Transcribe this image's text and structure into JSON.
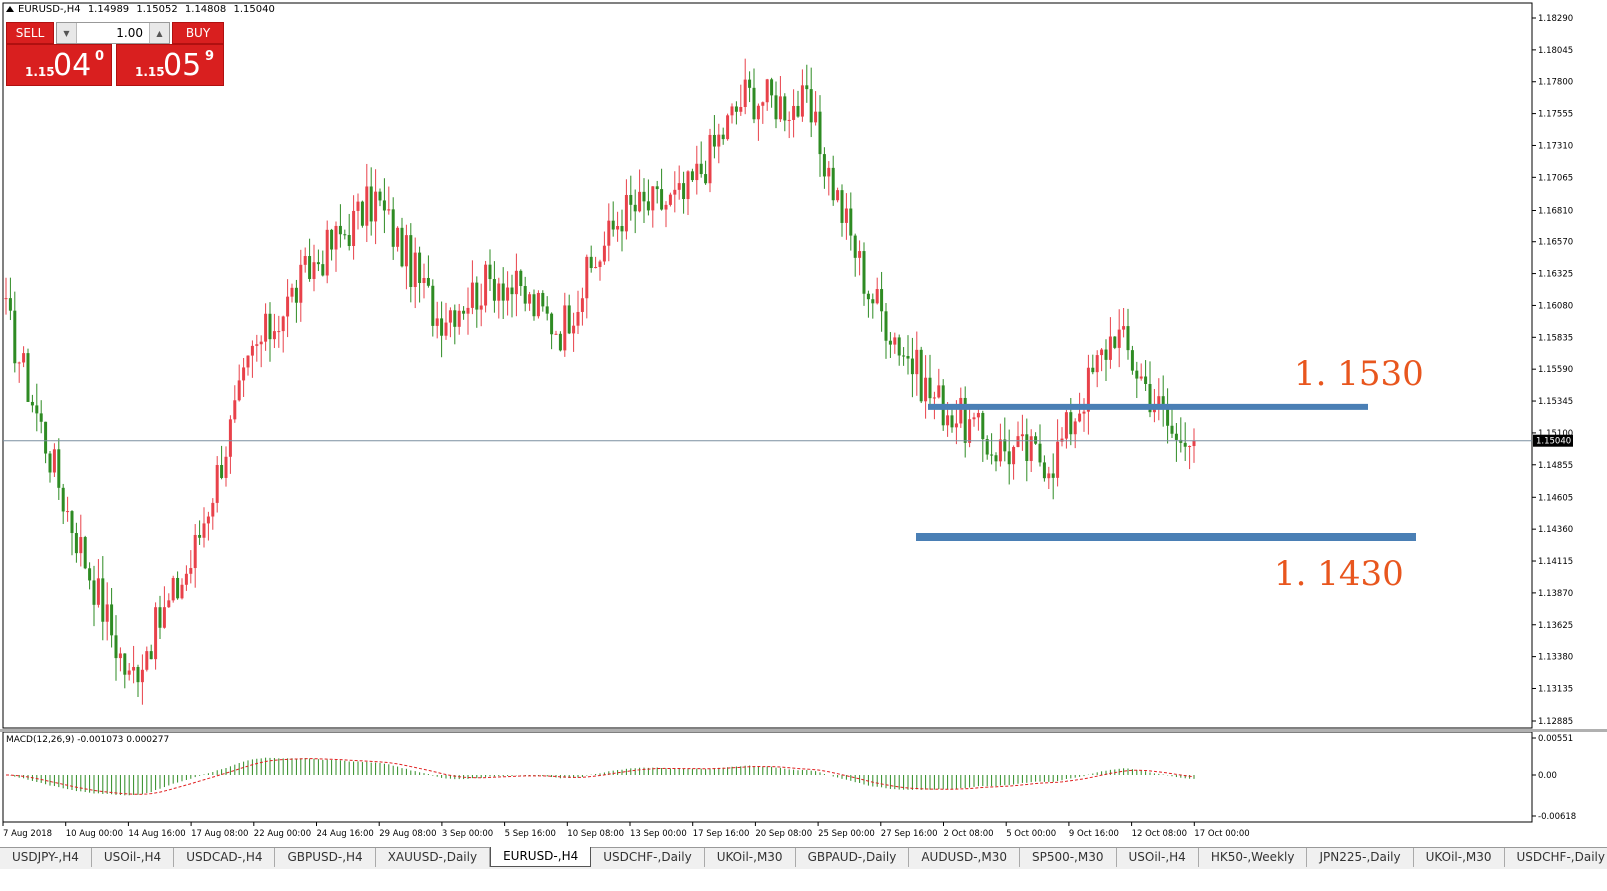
{
  "header": {
    "symbol": "EURUSD-,H4",
    "open": "1.14989",
    "high": "1.15052",
    "low": "1.14808",
    "close": "1.15040"
  },
  "trade_panel": {
    "sell_label": "SELL",
    "buy_label": "BUY",
    "lot_value": "1.00",
    "sell_price_small": "1.15",
    "sell_price_big": "04",
    "sell_price_sup": "0",
    "buy_price_small": "1.15",
    "buy_price_big": "05",
    "buy_price_sup": "9"
  },
  "price_axis": {
    "labels": [
      "1.18290",
      "1.18045",
      "1.17800",
      "1.17555",
      "1.17310",
      "1.17065",
      "1.16810",
      "1.16570",
      "1.16325",
      "1.16080",
      "1.15835",
      "1.15590",
      "1.15345",
      "1.15100",
      "1.14855",
      "1.14605",
      "1.14360",
      "1.14115",
      "1.13870",
      "1.13625",
      "1.13380",
      "1.13135",
      "1.12885"
    ],
    "current_price": "1.15040"
  },
  "macd": {
    "label": "MACD(12,26,9) -0.001073 0.000277",
    "axis_labels": [
      "0.00551",
      "0.00",
      "-0.00618"
    ]
  },
  "time_axis": {
    "labels": [
      "7 Aug 2018",
      "10 Aug 00:00",
      "14 Aug 16:00",
      "17 Aug 08:00",
      "22 Aug 00:00",
      "24 Aug 16:00",
      "29 Aug 08:00",
      "3 Sep 00:00",
      "5 Sep 16:00",
      "10 Sep 08:00",
      "13 Sep 00:00",
      "17 Sep 16:00",
      "20 Sep 08:00",
      "25 Sep 00:00",
      "27 Sep 16:00",
      "2 Oct 08:00",
      "5 Oct 00:00",
      "9 Oct 16:00",
      "12 Oct 08:00",
      "17 Oct 00:00"
    ]
  },
  "annotations": {
    "resistance_label": "1. 1530",
    "support_label": "1. 1430",
    "level_color": "#4a7fb5",
    "label_color": "#e8561e"
  },
  "colors": {
    "bull": "#e8414a",
    "bear": "#2e8b23",
    "macd_hist": "#2e8b23",
    "macd_signal": "#e02020",
    "trade_red": "#d91f1f"
  },
  "tabs": [
    {
      "label": "USDJPY-,H4"
    },
    {
      "label": "USOil-,H4"
    },
    {
      "label": "USDCAD-,H4"
    },
    {
      "label": "GBPUSD-,H4"
    },
    {
      "label": "XAUUSD-,Daily"
    },
    {
      "label": "EURUSD-,H4",
      "active": true
    },
    {
      "label": "USDCHF-,Daily"
    },
    {
      "label": "UKOil-,M30"
    },
    {
      "label": "GBPAUD-,Daily"
    },
    {
      "label": "AUDUSD-,M30"
    },
    {
      "label": "SP500-,M30"
    },
    {
      "label": "USOil-,H4"
    },
    {
      "label": "HK50-,Weekly"
    },
    {
      "label": "JPN225-,Daily"
    },
    {
      "label": "UKOil-,M30"
    },
    {
      "label": "USDCHF-,Daily"
    }
  ],
  "chart_data": {
    "type": "candlestick",
    "symbol": "EURUSD",
    "timeframe": "H4",
    "ylim": [
      1.12885,
      1.1829
    ],
    "key_points": [
      {
        "x": "7 Aug 2018",
        "close": 1.16
      },
      {
        "x": "10 Aug 00:00",
        "close": 1.145
      },
      {
        "x": "14 Aug 16:00",
        "close": 1.132
      },
      {
        "x": "17 Aug 08:00",
        "close": 1.141
      },
      {
        "x": "22 Aug 00:00",
        "close": 1.157
      },
      {
        "x": "24 Aug 16:00",
        "close": 1.164
      },
      {
        "x": "29 Aug 08:00",
        "close": 1.169
      },
      {
        "x": "3 Sep 00:00",
        "close": 1.16
      },
      {
        "x": "5 Sep 16:00",
        "close": 1.163
      },
      {
        "x": "10 Sep 08:00",
        "close": 1.159
      },
      {
        "x": "13 Sep 00:00",
        "close": 1.168
      },
      {
        "x": "17 Sep 16:00",
        "close": 1.169
      },
      {
        "x": "20 Sep 08:00",
        "close": 1.177
      },
      {
        "x": "25 Sep 00:00",
        "close": 1.176
      },
      {
        "x": "27 Sep 16:00",
        "close": 1.162
      },
      {
        "x": "2 Oct 08:00",
        "close": 1.154
      },
      {
        "x": "5 Oct 00:00",
        "close": 1.15
      },
      {
        "x": "9 Oct 16:00",
        "close": 1.149
      },
      {
        "x": "12 Oct 08:00",
        "close": 1.159
      },
      {
        "x": "17 Oct 00:00",
        "close": 1.1504
      }
    ],
    "levels": [
      {
        "label": "1. 1530",
        "price": 1.153
      },
      {
        "label": "1. 1430",
        "price": 1.143
      }
    ],
    "current_price": 1.1504
  }
}
